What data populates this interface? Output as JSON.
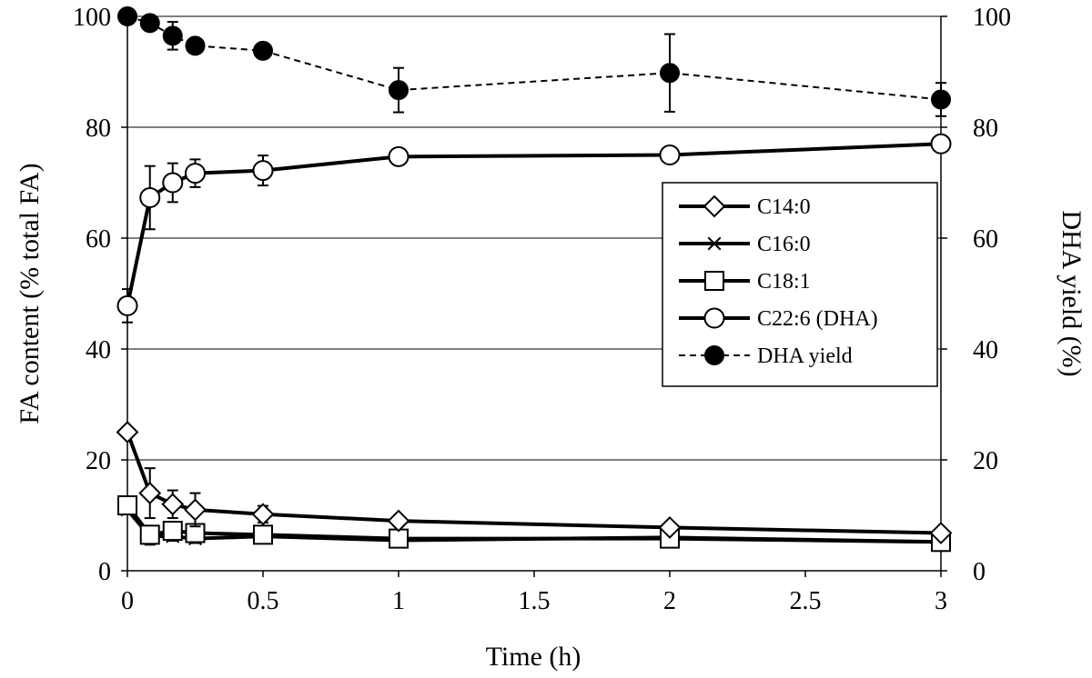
{
  "chart_data": {
    "type": "line",
    "xlabel": "Time (h)",
    "ylabel": "FA content (% total FA)",
    "y2label": "DHA yield (%)",
    "xlim": [
      0,
      3
    ],
    "ylim": [
      0,
      100
    ],
    "y2lim": [
      0,
      100
    ],
    "xticks": [
      "0",
      "0.5",
      "1",
      "1.5",
      "2",
      "2.5",
      "3"
    ],
    "yticks": [
      "0",
      "20",
      "40",
      "60",
      "80",
      "100"
    ],
    "y2ticks": [
      "0",
      "20",
      "40",
      "60",
      "80",
      "100"
    ],
    "grid": "horizontal",
    "legend_position": "center-right",
    "series": [
      {
        "name": "C14:0",
        "marker": "diamond",
        "line": "solid",
        "axis": "left",
        "x": [
          0,
          0.083,
          0.167,
          0.25,
          0.5,
          1,
          2,
          3
        ],
        "y": [
          25.0,
          14.0,
          12.0,
          11.0,
          10.2,
          9.0,
          7.8,
          6.8
        ],
        "err": [
          0,
          4.5,
          2.5,
          3.0,
          1.5,
          0,
          0,
          0
        ]
      },
      {
        "name": "C16:0",
        "marker": "asterisk",
        "line": "solid",
        "axis": "left",
        "x": [
          0,
          0.083,
          0.167,
          0.25,
          0.5,
          1,
          2,
          3
        ],
        "y": [
          11.0,
          6.2,
          6.2,
          5.8,
          6.2,
          5.5,
          6.0,
          5.2
        ],
        "err": [
          0,
          1.5,
          0.8,
          0.8,
          1.0,
          0,
          0,
          0
        ]
      },
      {
        "name": "C18:1",
        "marker": "square",
        "line": "solid",
        "axis": "left",
        "x": [
          0,
          0.083,
          0.167,
          0.25,
          0.5,
          1,
          2,
          3
        ],
        "y": [
          11.8,
          6.5,
          7.2,
          6.8,
          6.5,
          5.8,
          5.8,
          5.2
        ],
        "err": [
          0,
          1.5,
          1.0,
          1.0,
          1.0,
          0,
          0,
          0
        ]
      },
      {
        "name": "C22:6 (DHA)",
        "marker": "circle-open",
        "line": "solid",
        "axis": "left",
        "x": [
          0,
          0.083,
          0.167,
          0.25,
          0.5,
          1,
          2,
          3
        ],
        "y": [
          47.8,
          67.3,
          70.0,
          71.7,
          72.2,
          74.7,
          75.0,
          77.0
        ],
        "err": [
          3.0,
          5.7,
          3.5,
          2.5,
          2.7,
          0,
          0,
          0
        ]
      },
      {
        "name": "DHA yield",
        "marker": "circle-filled",
        "line": "dashed",
        "axis": "right",
        "x": [
          0,
          0.083,
          0.167,
          0.25,
          0.5,
          1,
          2,
          3
        ],
        "y": [
          100,
          98.8,
          96.5,
          94.7,
          93.8,
          86.7,
          89.8,
          85.0
        ],
        "err": [
          0,
          1.0,
          2.5,
          0,
          0,
          4.0,
          7.0,
          3.0
        ]
      }
    ]
  }
}
